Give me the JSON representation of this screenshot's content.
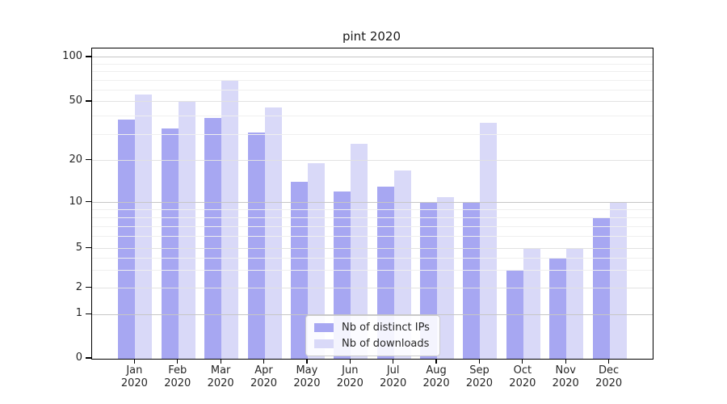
{
  "chart_data": {
    "type": "bar",
    "title": "pint 2020",
    "categories": [
      "Jan",
      "Feb",
      "Mar",
      "Apr",
      "May",
      "Jun",
      "Jul",
      "Aug",
      "Sep",
      "Oct",
      "Nov",
      "Dec"
    ],
    "category_year": "2020",
    "series": [
      {
        "name": "Nb of distinct IPs",
        "color": "#a7a7f2",
        "values": [
          38,
          33,
          39,
          31,
          14,
          12,
          13,
          10,
          10,
          3,
          4,
          8
        ]
      },
      {
        "name": "Nb of downloads",
        "color": "#d9d9f8",
        "values": [
          56,
          50,
          70,
          46,
          19,
          26,
          17,
          11,
          36,
          5,
          5,
          10
        ]
      }
    ],
    "y_axis": {
      "scale": "symlog",
      "ticks": [
        0,
        1,
        2,
        5,
        10,
        20,
        50,
        100
      ],
      "major_gridline_values": [
        1,
        10,
        100
      ],
      "mid_gridline_values": [
        2,
        5,
        20,
        50
      ],
      "minor_gridline_values": [
        3,
        4,
        6,
        7,
        8,
        9,
        30,
        40,
        60,
        70,
        80,
        90
      ],
      "ylim": [
        0,
        115
      ]
    },
    "x_axis": {
      "tick_label_lines": 2
    },
    "legend": {
      "position": "lower center"
    },
    "grid": true
  },
  "colors": {
    "axis": "#000000",
    "tick_text": "#262626",
    "title_text": "#1a1a1a",
    "grid_major": "#c6c6c6",
    "grid_mid": "#e2e2e2",
    "grid_minor": "#efefef",
    "legend_border": "#cccccc"
  }
}
